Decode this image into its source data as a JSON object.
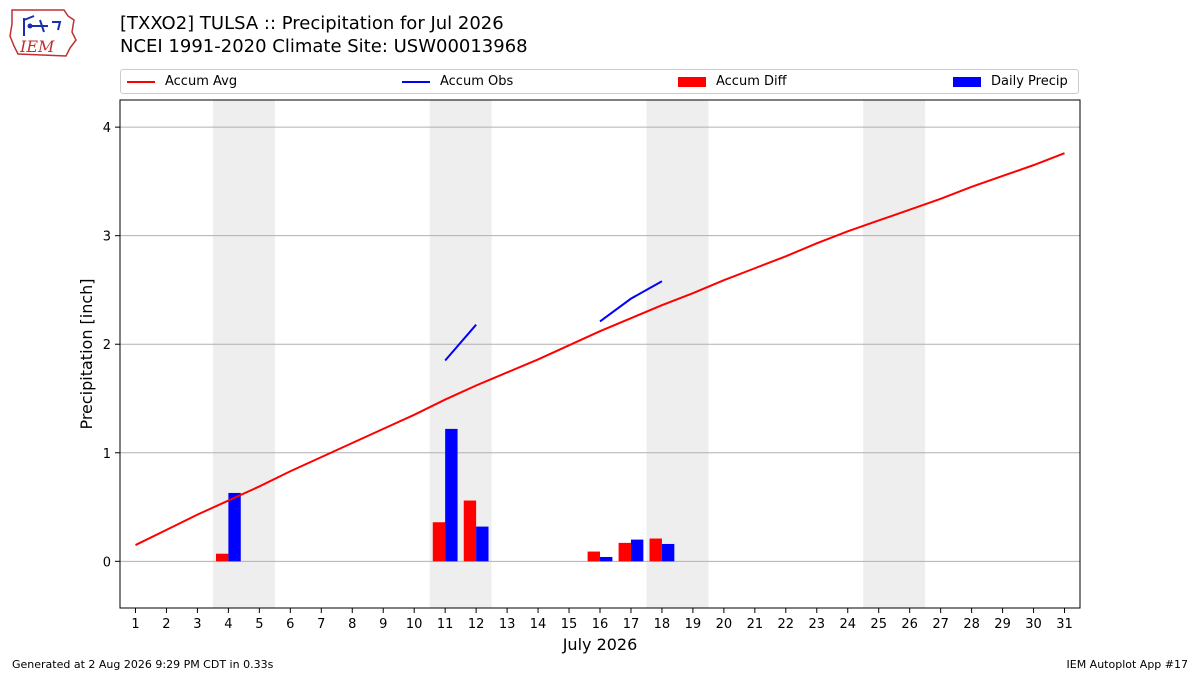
{
  "header": {
    "logo_text": "IEM",
    "title_line1": "[TXXO2] TULSA :: Precipitation for Jul 2026",
    "title_line2": "NCEI 1991-2020 Climate Site: USW00013968"
  },
  "footer": {
    "generated": "Generated at 2 Aug 2026 9:29 PM CDT in 0.33s",
    "app": "IEM Autoplot App #17"
  },
  "colors": {
    "avg": "#ff0000",
    "obs": "#0000ff",
    "diff": "#ff0000",
    "daily": "#0000ff",
    "weekend": "#eeeeee",
    "grid": "#b0b0b0"
  },
  "chart_data": {
    "type": "bar",
    "xlabel": "July 2026",
    "ylabel": "Precipitation [inch]",
    "xlim": [
      0.5,
      31.5
    ],
    "ylim": [
      -0.43,
      4.25
    ],
    "yticks": [
      0,
      1,
      2,
      3,
      4
    ],
    "xticks": [
      "1",
      "2",
      "3",
      "4",
      "5",
      "6",
      "7",
      "8",
      "9",
      "10",
      "11",
      "12",
      "13",
      "14",
      "15",
      "16",
      "17",
      "18",
      "19",
      "20",
      "21",
      "22",
      "23",
      "24",
      "25",
      "26",
      "27",
      "28",
      "29",
      "30",
      "31"
    ],
    "grid": "horizontal",
    "legend_placement": "top",
    "weekend_shading": [
      [
        4,
        5
      ],
      [
        11,
        12
      ],
      [
        18,
        19
      ],
      [
        25,
        26
      ]
    ],
    "legend": [
      "Accum Avg",
      "Accum Obs",
      "Accum Diff",
      "Daily Precip"
    ],
    "accum_avg": {
      "x": [
        1,
        2,
        3,
        4,
        5,
        6,
        7,
        8,
        9,
        10,
        11,
        12,
        13,
        14,
        15,
        16,
        17,
        18,
        19,
        20,
        21,
        22,
        23,
        24,
        25,
        26,
        27,
        28,
        29,
        30,
        31
      ],
      "y": [
        0.15,
        0.29,
        0.43,
        0.56,
        0.69,
        0.83,
        0.96,
        1.09,
        1.22,
        1.35,
        1.49,
        1.62,
        1.74,
        1.86,
        1.99,
        2.12,
        2.24,
        2.36,
        2.47,
        2.59,
        2.7,
        2.81,
        2.93,
        3.04,
        3.14,
        3.24,
        3.34,
        3.45,
        3.55,
        3.65,
        3.76
      ]
    },
    "accum_obs": [
      {
        "x": [
          11,
          12
        ],
        "y": [
          1.85,
          2.18
        ]
      },
      {
        "x": [
          16,
          17,
          18
        ],
        "y": [
          2.21,
          2.42,
          2.58
        ]
      }
    ],
    "accum_diff": {
      "x": [
        4,
        11,
        12,
        16,
        17,
        18
      ],
      "y": [
        0.07,
        0.36,
        0.56,
        0.09,
        0.17,
        0.21
      ]
    },
    "daily_precip": {
      "x": [
        4,
        11,
        12,
        16,
        17,
        18
      ],
      "y": [
        0.63,
        1.22,
        0.32,
        0.04,
        0.2,
        0.16
      ]
    }
  }
}
